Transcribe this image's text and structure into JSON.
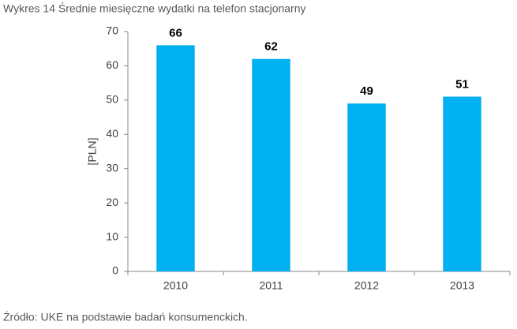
{
  "chart_data": {
    "type": "bar",
    "title": "Wykres 14 Średnie miesięczne wydatki na telefon stacjonarny",
    "y_label": "[PLN]",
    "source": "Źródło: UKE na podstawie badań konsumenckich.",
    "categories": [
      "2010",
      "2011",
      "2012",
      "2013"
    ],
    "values": [
      66,
      62,
      49,
      51
    ],
    "color": "#00b0f0",
    "ylim": [
      0,
      70
    ],
    "yticks": [
      0,
      10,
      20,
      30,
      40,
      50,
      60,
      70
    ]
  }
}
